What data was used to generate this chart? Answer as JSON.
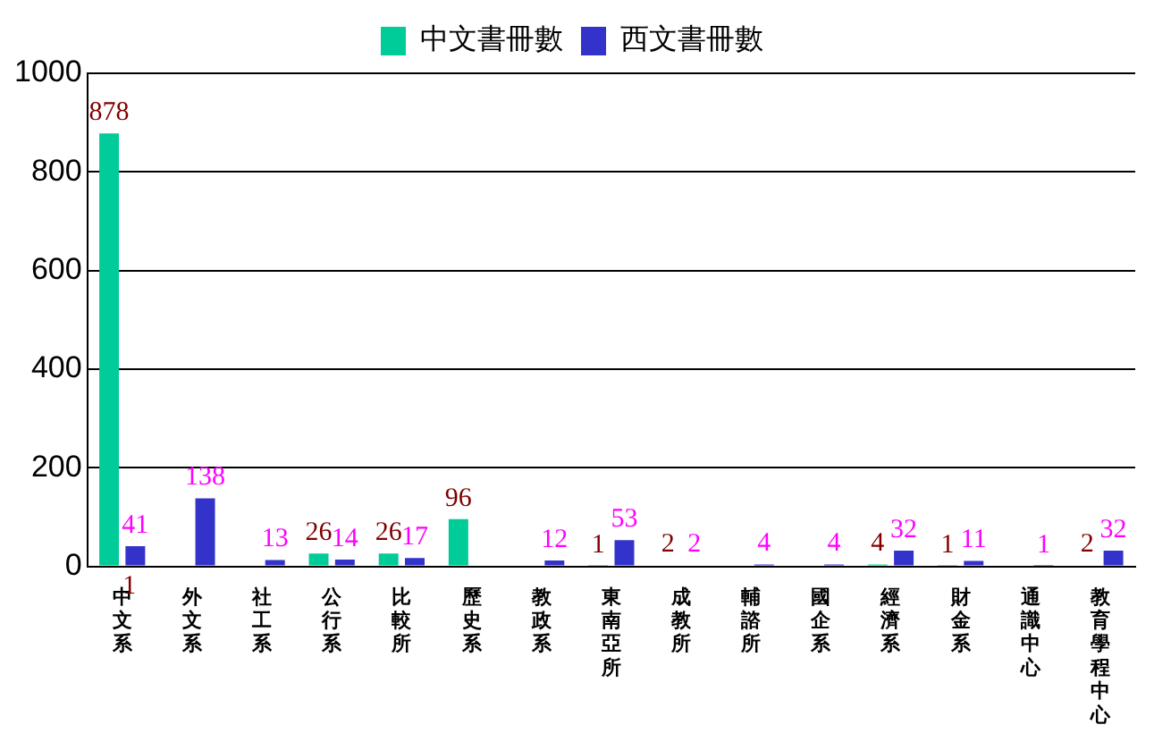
{
  "chart_data": {
    "type": "bar",
    "categories": [
      "中文系",
      "外文系",
      "社工系",
      "公行系",
      "比較所",
      "歷史系",
      "教政系",
      "東南亞所",
      "成教所",
      "輔諮所",
      "國企系",
      "經濟系",
      "財金系",
      "通識中心",
      "教育學程中心"
    ],
    "series": [
      {
        "name": "中文書冊數",
        "color": "#00cc99",
        "values": [
          878,
          null,
          null,
          26,
          26,
          96,
          null,
          1,
          2,
          null,
          null,
          4,
          1,
          null,
          2
        ]
      },
      {
        "name": "西文書冊數",
        "color": "#3333cc",
        "values": [
          41,
          138,
          13,
          14,
          17,
          null,
          12,
          53,
          2,
          4,
          4,
          32,
          11,
          1,
          32
        ]
      }
    ],
    "ylim": [
      0,
      1000
    ],
    "yticks": [
      0,
      200,
      400,
      600,
      800,
      1000
    ],
    "grid": "y",
    "legend": "top",
    "data_labels": true,
    "annotations": [
      "1"
    ]
  }
}
